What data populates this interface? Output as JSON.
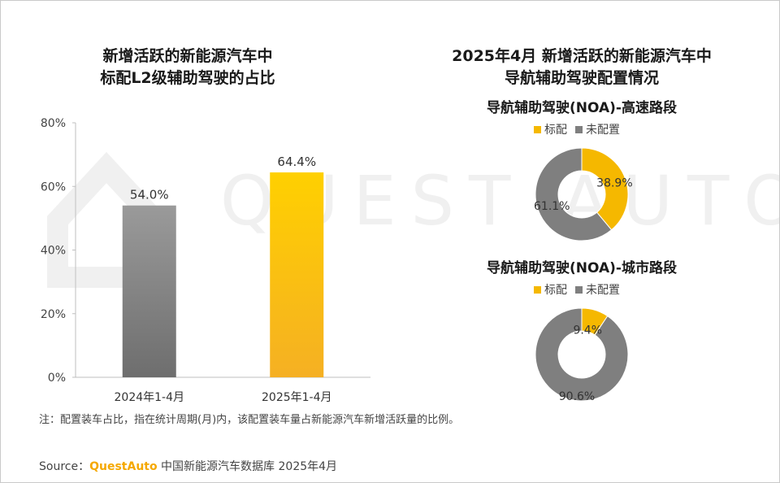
{
  "watermark": {
    "text": "QUEST AUTO"
  },
  "colors": {
    "gray": "#7f7f7f",
    "yellow": "#f5b800",
    "dark_gray": "#6b6b6b"
  },
  "chart_data": [
    {
      "type": "bar",
      "title": "新增活跃的新能源汽车中\n标配L2级辅助驾驶的占比",
      "categories": [
        "2024年1-4月",
        "2025年1-4月"
      ],
      "values": [
        54.0,
        64.4
      ],
      "value_labels": [
        "54.0%",
        "64.4%"
      ],
      "colors": [
        "#7f7f7f",
        "#f5b800"
      ],
      "ylim": [
        0,
        80
      ],
      "yticks": [
        0,
        20,
        40,
        60,
        80
      ],
      "ytick_labels": [
        "0%",
        "20%",
        "40%",
        "60%",
        "80%"
      ],
      "xlabel": "",
      "ylabel": "",
      "grid": false
    },
    {
      "type": "pie",
      "title": "导航辅助驾驶(NOA)-高速路段",
      "labels": [
        "标配",
        "未配置"
      ],
      "values": [
        38.9,
        61.1
      ],
      "value_labels": [
        "38.9%",
        "61.1%"
      ],
      "colors": [
        "#f5b800",
        "#7f7f7f"
      ],
      "legend": "top"
    },
    {
      "type": "pie",
      "title": "导航辅助驾驶(NOA)-城市路段",
      "labels": [
        "标配",
        "未配置"
      ],
      "values": [
        9.4,
        90.6
      ],
      "value_labels": [
        "9.4%",
        "90.6%"
      ],
      "colors": [
        "#f5b800",
        "#7f7f7f"
      ],
      "legend": "top"
    }
  ],
  "right_panel": {
    "title": "2025年4月 新增活跃的新能源汽车中\n导航辅助驾驶配置情况"
  },
  "footer": {
    "note": "注：配置装车占比，指在统计周期(月)内，该配置装车量占新能源汽车新增活跃量的比例。",
    "source_prefix": "Source：",
    "source_brand": "QuestAuto",
    "source_text": " 中国新能源汽车数据库 2025年4月"
  }
}
